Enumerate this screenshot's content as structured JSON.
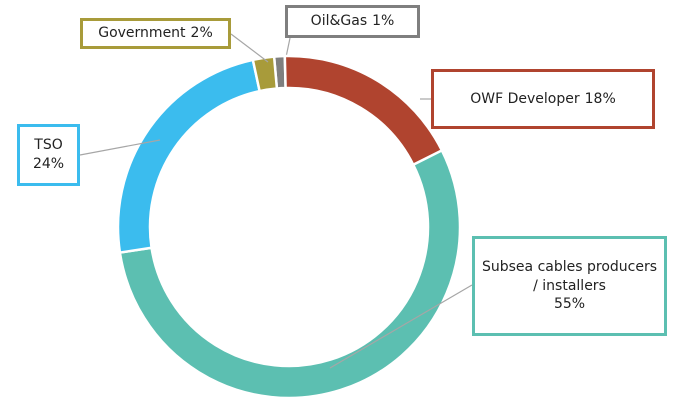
{
  "chart_data": {
    "type": "donut",
    "categories": [
      "Oil&Gas",
      "OWF Developer",
      "Subsea cables producers / installers",
      "TSO",
      "Government"
    ],
    "values": [
      1,
      18,
      55,
      24,
      2
    ],
    "value_labels": [
      "1%",
      "18%",
      "55%",
      "24%",
      "2%"
    ],
    "colors": [
      "#7f7f7f",
      "#b0442f",
      "#5cbfb1",
      "#3bbcee",
      "#a89b3a"
    ]
  }
}
